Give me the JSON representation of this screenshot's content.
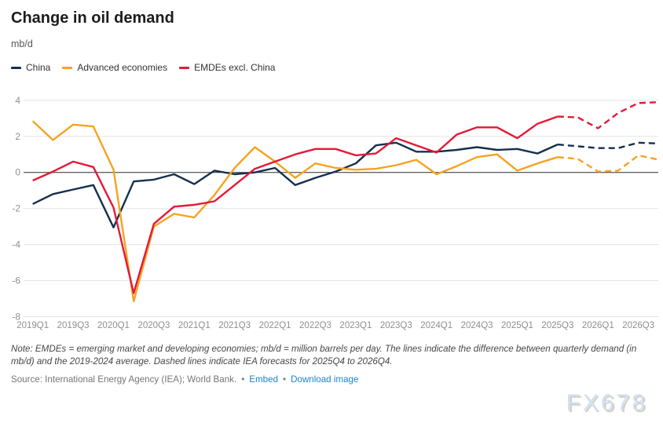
{
  "header": {
    "title": "Change in oil demand",
    "unit": "mb/d"
  },
  "legend": [
    {
      "label": "China",
      "color": "#14304d"
    },
    {
      "label": "Advanced economies",
      "color": "#f5a321"
    },
    {
      "label": "EMDEs excl. China",
      "color": "#e31937"
    }
  ],
  "chart_data": {
    "type": "line",
    "title": "Change in oil demand",
    "ylabel": "mb/d",
    "grid": true,
    "legend_position": "top",
    "ylim": [
      -8,
      4
    ],
    "yticks": [
      4,
      2,
      0,
      -2,
      -4,
      -6,
      -8
    ],
    "x": [
      "2019Q1",
      "2019Q2",
      "2019Q3",
      "2019Q4",
      "2020Q1",
      "2020Q2",
      "2020Q3",
      "2020Q4",
      "2021Q1",
      "2021Q2",
      "2021Q3",
      "2021Q4",
      "2022Q1",
      "2022Q2",
      "2022Q3",
      "2022Q4",
      "2023Q1",
      "2023Q2",
      "2023Q3",
      "2023Q4",
      "2024Q1",
      "2024Q2",
      "2024Q3",
      "2024Q4",
      "2025Q1",
      "2025Q2",
      "2025Q3",
      "2025Q4",
      "2026Q1",
      "2026Q2",
      "2026Q3",
      "2026Q4"
    ],
    "xtick_labels": [
      "2019Q1",
      "2019Q3",
      "2020Q1",
      "2020Q3",
      "2021Q1",
      "2021Q3",
      "2022Q1",
      "2022Q3",
      "2023Q1",
      "2023Q3",
      "2024Q1",
      "2024Q3",
      "2025Q1",
      "2025Q3",
      "2026Q1",
      "2026Q3"
    ],
    "forecast_start_index": 26,
    "series": [
      {
        "name": "China",
        "color": "#14304d",
        "values": [
          -1.75,
          -1.2,
          -0.95,
          -0.7,
          -3.05,
          -0.5,
          -0.4,
          -0.1,
          -0.65,
          0.1,
          -0.1,
          0,
          0.25,
          -0.7,
          -0.3,
          0.05,
          0.5,
          1.5,
          1.65,
          1.15,
          1.15,
          1.25,
          1.4,
          1.25,
          1.3,
          1.05,
          1.55,
          1.45,
          1.35,
          1.35,
          1.65,
          1.6
        ]
      },
      {
        "name": "Advanced economies",
        "color": "#f5a321",
        "values": [
          2.85,
          1.8,
          2.65,
          2.55,
          0.15,
          -7.15,
          -3.0,
          -2.3,
          -2.5,
          -1.25,
          0.25,
          1.4,
          0.6,
          -0.3,
          0.5,
          0.25,
          0.15,
          0.2,
          0.4,
          0.7,
          -0.1,
          0.35,
          0.85,
          1.0,
          0.1,
          0.5,
          0.85,
          0.75,
          0.05,
          0.1,
          0.95,
          0.7
        ]
      },
      {
        "name": "EMDEs excl. China",
        "color": "#e31937",
        "values": [
          -0.45,
          0.05,
          0.6,
          0.3,
          -1.95,
          -6.7,
          -2.85,
          -1.9,
          -1.8,
          -1.6,
          -0.7,
          0.2,
          0.6,
          1.0,
          1.3,
          1.3,
          0.95,
          1.05,
          1.9,
          1.5,
          1.1,
          2.1,
          2.5,
          2.5,
          1.9,
          2.7,
          3.1,
          3.05,
          2.45,
          3.3,
          3.85,
          3.9
        ]
      }
    ]
  },
  "footer": {
    "note": "Note: EMDEs = emerging market and developing economies; mb/d = million barrels per day. The lines indicate the difference between quarterly demand (in mb/d) and the 2019-2024 average. Dashed lines indicate IEA forecasts for 2025Q4 to 2026Q4.",
    "source": "Source: International Energy Agency (IEA); World Bank.",
    "separator": "•",
    "links": [
      {
        "label": "Embed"
      },
      {
        "label": "Download image"
      }
    ]
  },
  "watermark": "FX678"
}
